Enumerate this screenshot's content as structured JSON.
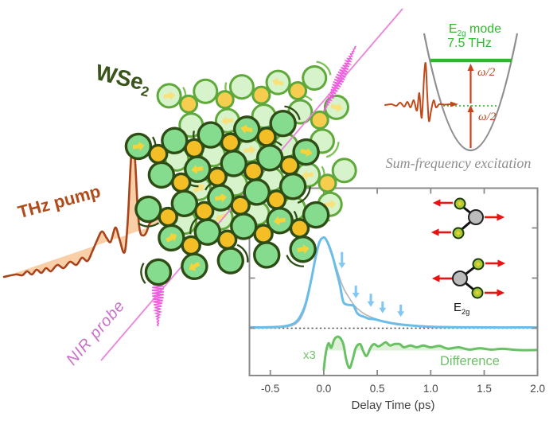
{
  "material_label": {
    "base": "WSe",
    "sub": "2"
  },
  "beam_labels": {
    "pump": "THz pump",
    "probe": "NIR probe"
  },
  "potential_panel": {
    "mode": {
      "base": "E",
      "sub": "2g",
      "rest": " mode"
    },
    "frequency": "7.5 THz",
    "omega_upper": "ω/2",
    "omega_lower": "ω/2",
    "caption": "Sum-frequency excitation"
  },
  "inset": {
    "x3": "x3",
    "difference": "Difference",
    "mode_label": {
      "base": "E",
      "sub": "2g"
    }
  },
  "colors": {
    "pump_stroke": "#a8431a",
    "pump_fill": "#f8cba1",
    "pump_beamline": "#8d3c10",
    "probe_line": "#e983dc",
    "probe_packet": "#ee5fe0",
    "level_green": "#2eb82e",
    "well_gray": "#8f8f8f",
    "arrow_red": "#c7441a",
    "displacement_red": "#e81313",
    "lattice_front": {
      "bond": "#2e4d15",
      "se_fill": "#86dc8e",
      "w_fill": "#f3be26",
      "arrow": "#f6d338"
    },
    "lattice_back": {
      "bond": "#5fa83a",
      "se_fill": "#d6f3cb",
      "w_fill": "#f6cd4f",
      "arrow": "#f9e27e"
    }
  },
  "chart_data": {
    "type": "line",
    "xlabel": "Delay Time (ps)",
    "xlim": [
      -0.7,
      2.03
    ],
    "x_ticks": [
      -0.5,
      0.0,
      0.5,
      1.0,
      1.5,
      2.0
    ],
    "x_tick_labels": [
      "-0.5",
      "0.0",
      "0.5",
      "1.0",
      "1.5",
      "2.0"
    ],
    "y_axis_note": "signal amplitude, unlabeled (a.u.); zero shown as dotted line",
    "zero_line": true,
    "series": [
      {
        "name": "pump-probe signal",
        "color": "#6bbde9",
        "width": 3,
        "points": [
          [
            -0.7,
            0.01
          ],
          [
            -0.55,
            0.01
          ],
          [
            -0.42,
            0.015
          ],
          [
            -0.33,
            0.03
          ],
          [
            -0.27,
            0.06
          ],
          [
            -0.22,
            0.13
          ],
          [
            -0.17,
            0.27
          ],
          [
            -0.12,
            0.52
          ],
          [
            -0.08,
            0.76
          ],
          [
            -0.04,
            0.95
          ],
          [
            0.0,
            1.0
          ],
          [
            0.03,
            0.96
          ],
          [
            0.06,
            0.87
          ],
          [
            0.09,
            0.76
          ],
          [
            0.12,
            0.62
          ],
          [
            0.15,
            0.48
          ],
          [
            0.18,
            0.3
          ],
          [
            0.21,
            0.262
          ],
          [
            0.25,
            0.255
          ],
          [
            0.28,
            0.245
          ],
          [
            0.31,
            0.17
          ],
          [
            0.34,
            0.14
          ],
          [
            0.38,
            0.125
          ],
          [
            0.42,
            0.105
          ],
          [
            0.47,
            0.1
          ],
          [
            0.52,
            0.085
          ],
          [
            0.58,
            0.068
          ],
          [
            0.65,
            0.052
          ],
          [
            0.72,
            0.04
          ],
          [
            0.8,
            0.032
          ],
          [
            0.9,
            0.022
          ],
          [
            1.0,
            0.016
          ],
          [
            1.15,
            0.012
          ],
          [
            1.3,
            0.01
          ],
          [
            1.5,
            0.009
          ],
          [
            1.7,
            0.008
          ],
          [
            1.85,
            0.009
          ],
          [
            2.03,
            0.008
          ]
        ]
      },
      {
        "name": "smooth fit",
        "color": "#b5b5b5",
        "width": 1.6,
        "points": [
          [
            -0.7,
            0.005
          ],
          [
            -0.45,
            0.005
          ],
          [
            -0.33,
            0.02
          ],
          [
            -0.26,
            0.05
          ],
          [
            -0.21,
            0.12
          ],
          [
            -0.16,
            0.28
          ],
          [
            -0.11,
            0.55
          ],
          [
            -0.06,
            0.86
          ],
          [
            -0.01,
            1.0
          ],
          [
            0.03,
            0.97
          ],
          [
            0.07,
            0.86
          ],
          [
            0.11,
            0.7
          ],
          [
            0.15,
            0.55
          ],
          [
            0.19,
            0.43
          ],
          [
            0.24,
            0.33
          ],
          [
            0.29,
            0.245
          ],
          [
            0.34,
            0.19
          ],
          [
            0.4,
            0.145
          ],
          [
            0.47,
            0.11
          ],
          [
            0.55,
            0.082
          ],
          [
            0.64,
            0.06
          ],
          [
            0.74,
            0.044
          ],
          [
            0.86,
            0.031
          ],
          [
            1.0,
            0.021
          ],
          [
            1.2,
            0.014
          ],
          [
            1.45,
            0.01
          ],
          [
            1.7,
            0.008
          ],
          [
            2.03,
            0.007
          ]
        ]
      },
      {
        "name": "Difference (x3, plotted on offset baseline)",
        "color": "#69c164",
        "width": 3,
        "points": [
          [
            0.0,
            -0.21
          ],
          [
            0.02,
            -0.02
          ],
          [
            0.045,
            0.08
          ],
          [
            0.07,
            0.03
          ],
          [
            0.1,
            0.125
          ],
          [
            0.14,
            0.15
          ],
          [
            0.18,
            0.08
          ],
          [
            0.21,
            -0.1
          ],
          [
            0.24,
            -0.195
          ],
          [
            0.27,
            -0.1
          ],
          [
            0.3,
            0.03
          ],
          [
            0.34,
            0.07
          ],
          [
            0.37,
            -0.01
          ],
          [
            0.4,
            -0.06
          ],
          [
            0.44,
            0.035
          ],
          [
            0.47,
            0.07
          ],
          [
            0.51,
            0.045
          ],
          [
            0.55,
            0.07
          ],
          [
            0.58,
            0.09
          ],
          [
            0.62,
            0.055
          ],
          [
            0.66,
            0.07
          ],
          [
            0.71,
            0.07
          ],
          [
            0.75,
            0.035
          ],
          [
            0.81,
            0.055
          ],
          [
            0.87,
            0.035
          ],
          [
            0.93,
            0.055
          ],
          [
            1.0,
            0.035
          ],
          [
            1.08,
            0.05
          ],
          [
            1.16,
            0.02
          ],
          [
            1.26,
            0.035
          ],
          [
            1.36,
            0.01
          ],
          [
            1.46,
            0.025
          ],
          [
            1.56,
            0.01
          ],
          [
            1.68,
            0.018
          ],
          [
            1.83,
            0.004
          ],
          [
            2.03,
            0.006
          ]
        ]
      }
    ],
    "annotations": {
      "oscillation_arrows": [
        {
          "t": 0.17,
          "tip": 0.66,
          "top": 0.84
        },
        {
          "t": 0.3,
          "tip": 0.33,
          "top": 0.47
        },
        {
          "t": 0.44,
          "tip": 0.235,
          "top": 0.38
        },
        {
          "t": 0.55,
          "tip": 0.165,
          "top": 0.295
        },
        {
          "t": 0.72,
          "tip": 0.125,
          "top": 0.26
        }
      ],
      "x3": "x3",
      "difference": "Difference"
    }
  }
}
